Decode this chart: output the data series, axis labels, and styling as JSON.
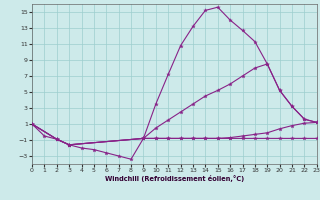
{
  "xlabel": "Windchill (Refroidissement éolien,°C)",
  "xlim": [
    0,
    23
  ],
  "ylim": [
    -4,
    16
  ],
  "xticks": [
    0,
    1,
    2,
    3,
    4,
    5,
    6,
    7,
    8,
    9,
    10,
    11,
    12,
    13,
    14,
    15,
    16,
    17,
    18,
    19,
    20,
    21,
    22,
    23
  ],
  "yticks": [
    -3,
    -1,
    1,
    3,
    5,
    7,
    9,
    11,
    13,
    15
  ],
  "background_color": "#cdeaea",
  "grid_color": "#9dcece",
  "line_color": "#882288",
  "lines": [
    {
      "x": [
        0,
        1,
        2,
        3,
        4,
        5,
        6,
        7,
        8,
        9,
        10,
        11,
        12,
        13,
        14,
        15,
        16,
        17,
        18,
        19,
        20,
        21,
        22,
        23
      ],
      "y": [
        1.0,
        -0.5,
        -0.9,
        -1.6,
        -2.0,
        -2.2,
        -2.6,
        -3.0,
        -3.4,
        -0.8,
        -0.8,
        -0.8,
        -0.8,
        -0.8,
        -0.8,
        -0.8,
        -0.8,
        -0.8,
        -0.8,
        -0.8,
        -0.8,
        -0.8,
        -0.8,
        -0.8
      ]
    },
    {
      "x": [
        0,
        2,
        3,
        9,
        10,
        11,
        12,
        13,
        14,
        15,
        16,
        17,
        18,
        19,
        20,
        21,
        22,
        23
      ],
      "y": [
        1.0,
        -0.9,
        -1.6,
        -0.8,
        3.5,
        7.2,
        10.8,
        13.2,
        15.2,
        15.6,
        14.0,
        12.7,
        11.3,
        8.5,
        5.2,
        3.2,
        1.6,
        1.2
      ]
    },
    {
      "x": [
        0,
        2,
        3,
        9,
        10,
        11,
        12,
        13,
        14,
        15,
        16,
        17,
        18,
        19,
        20,
        21,
        22,
        23
      ],
      "y": [
        1.0,
        -0.9,
        -1.6,
        -0.8,
        0.5,
        1.5,
        2.5,
        3.5,
        4.5,
        5.2,
        6.0,
        7.0,
        8.0,
        8.5,
        5.2,
        3.2,
        1.6,
        1.2
      ]
    },
    {
      "x": [
        0,
        2,
        3,
        9,
        10,
        11,
        12,
        13,
        14,
        15,
        16,
        17,
        18,
        19,
        20,
        21,
        22,
        23
      ],
      "y": [
        1.0,
        -0.9,
        -1.6,
        -0.8,
        -0.8,
        -0.8,
        -0.8,
        -0.8,
        -0.8,
        -0.8,
        -0.7,
        -0.5,
        -0.3,
        -0.1,
        0.4,
        0.8,
        1.1,
        1.2
      ]
    }
  ]
}
